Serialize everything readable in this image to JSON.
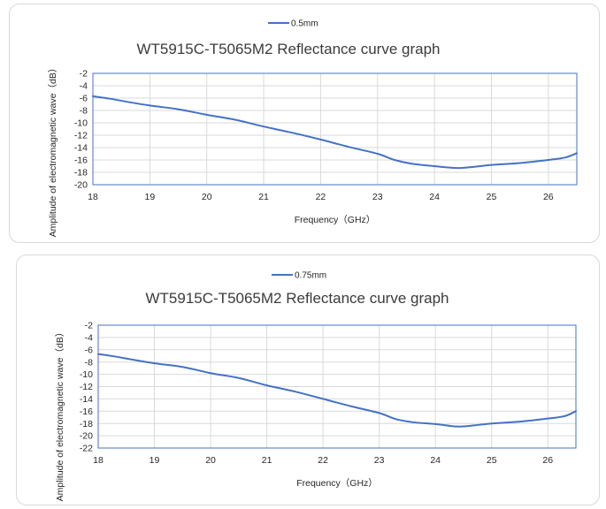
{
  "chart_data": [
    {
      "type": "line",
      "title": "WT5915C-T5065M2 Reflectance curve graph",
      "xlabel": "Frequency（GHz）",
      "ylabel": "Amplitude of electromagnetic wave（dB）",
      "xlim": [
        18,
        26.5
      ],
      "ylim": [
        -20,
        -2
      ],
      "x_ticks": [
        "18",
        "19",
        "20",
        "21",
        "22",
        "23",
        "24",
        "25",
        "26"
      ],
      "y_ticks": [
        "-2",
        "-4",
        "-6",
        "-8",
        "-10",
        "-12",
        "-14",
        "-16",
        "-18",
        "-20"
      ],
      "legend": "top",
      "grid": true,
      "color": "#4472c4",
      "series": [
        {
          "name": "0.5mm",
          "x": [
            18,
            18.3,
            18.6,
            19,
            19.5,
            20,
            20.5,
            21,
            21.5,
            22,
            22.5,
            23,
            23.3,
            23.6,
            24,
            24.4,
            24.7,
            25,
            25.5,
            26,
            26.3,
            26.5
          ],
          "y": [
            -5.7,
            -6.1,
            -6.6,
            -7.2,
            -7.8,
            -8.7,
            -9.5,
            -10.6,
            -11.6,
            -12.7,
            -13.9,
            -15.0,
            -16.0,
            -16.6,
            -17.0,
            -17.3,
            -17.1,
            -16.8,
            -16.5,
            -16.0,
            -15.6,
            -14.9
          ]
        }
      ]
    },
    {
      "type": "line",
      "title": "WT5915C-T5065M2 Reflectance curve graph",
      "xlabel": "Frequency（GHz）",
      "ylabel": "Amplitude of electromagnetic wave（dB）",
      "xlim": [
        18,
        26.5
      ],
      "ylim": [
        -22,
        -2
      ],
      "x_ticks": [
        "18",
        "19",
        "20",
        "21",
        "22",
        "23",
        "24",
        "25",
        "26"
      ],
      "y_ticks": [
        "-2",
        "-4",
        "-6",
        "-8",
        "-10",
        "-12",
        "-14",
        "-16",
        "-18",
        "-20",
        "-22"
      ],
      "legend": "top",
      "grid": true,
      "color": "#4472c4",
      "series": [
        {
          "name": "0.75mm",
          "x": [
            18,
            18.3,
            18.6,
            19,
            19.5,
            20,
            20.5,
            21,
            21.5,
            22,
            22.5,
            23,
            23.3,
            23.6,
            24,
            24.4,
            24.7,
            25,
            25.5,
            26,
            26.3,
            26.5
          ],
          "y": [
            -6.7,
            -7.1,
            -7.6,
            -8.2,
            -8.8,
            -9.8,
            -10.6,
            -11.8,
            -12.8,
            -14.0,
            -15.2,
            -16.3,
            -17.3,
            -17.8,
            -18.1,
            -18.5,
            -18.3,
            -18.0,
            -17.7,
            -17.2,
            -16.8,
            -16.0
          ]
        }
      ]
    }
  ]
}
